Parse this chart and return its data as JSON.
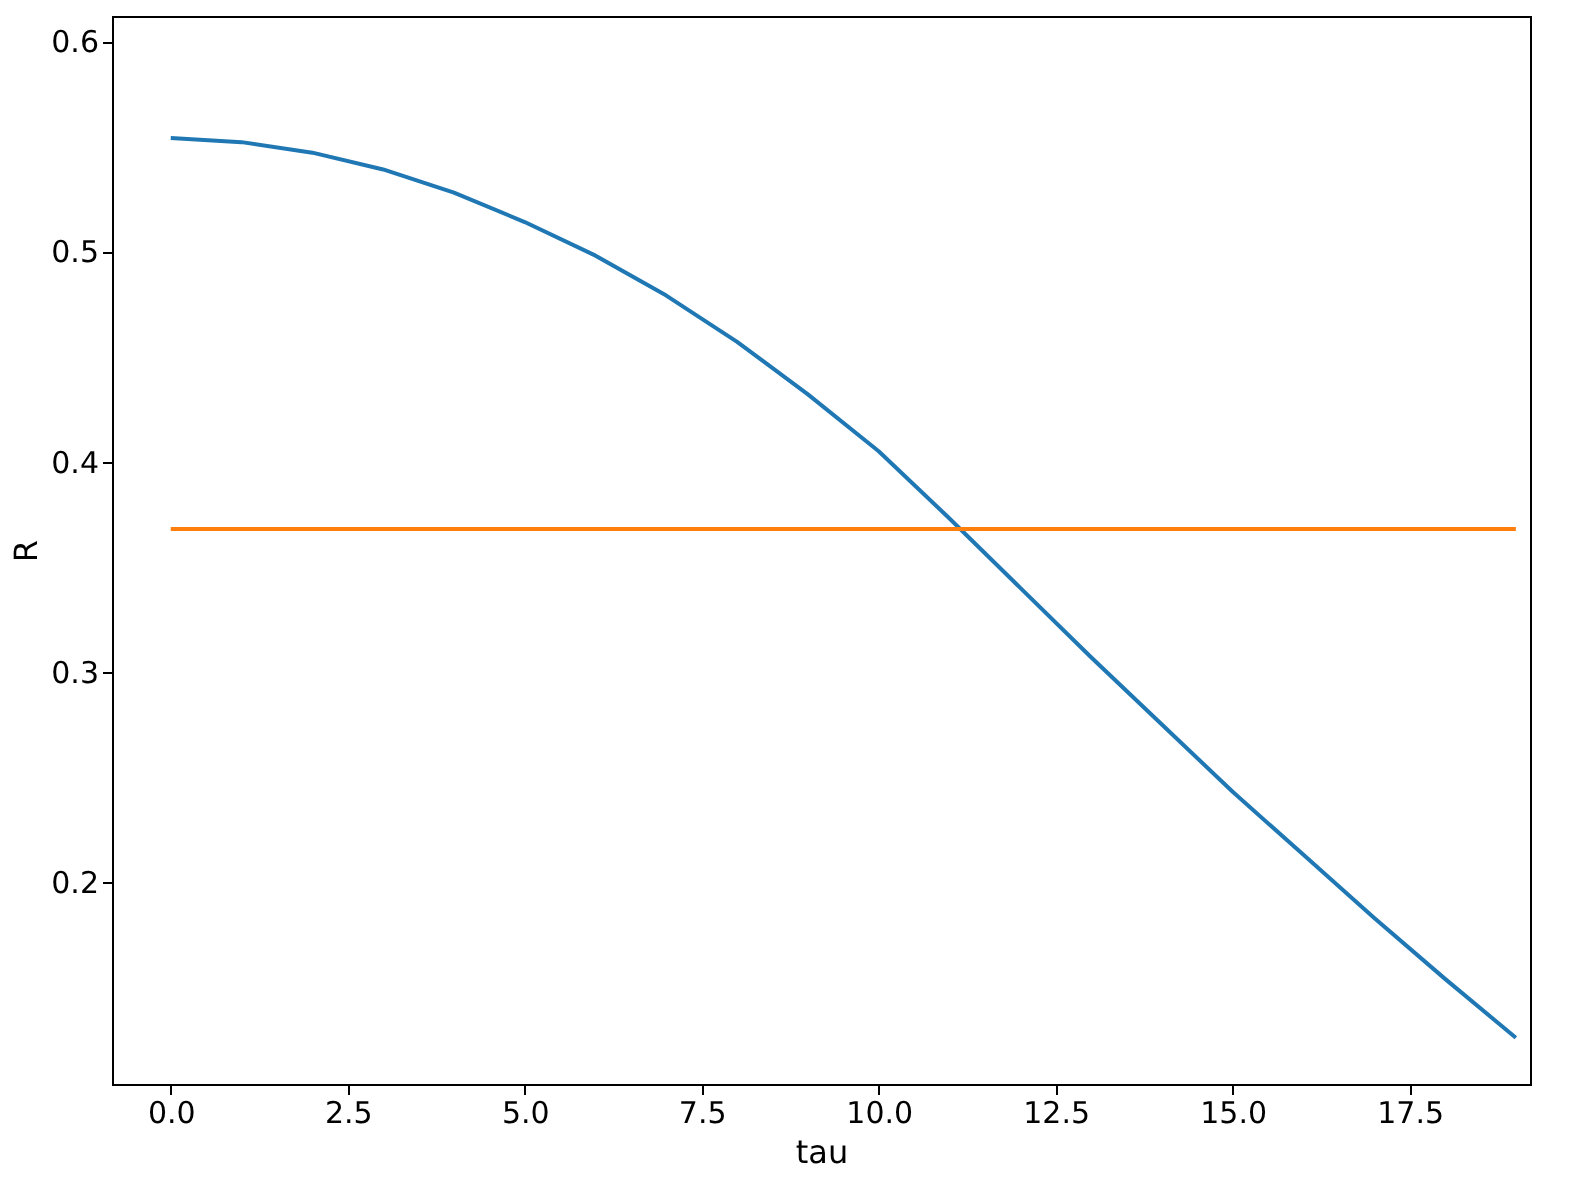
{
  "chart_data": {
    "type": "line",
    "xlabel": "tau",
    "ylabel": "R",
    "x": [
      0,
      1,
      2,
      3,
      4,
      5,
      6,
      7,
      8,
      9,
      10,
      11,
      12,
      13,
      14,
      15,
      16,
      17,
      18,
      19
    ],
    "series": [
      {
        "color": "#1f77b4",
        "values": [
          0.554,
          0.552,
          0.547,
          0.539,
          0.528,
          0.514,
          0.498,
          0.479,
          0.457,
          0.432,
          0.405,
          0.373,
          0.34,
          0.307,
          0.275,
          0.243,
          0.213,
          0.183,
          0.154,
          0.126
        ]
      },
      {
        "color": "#ff7f0e",
        "values": [
          0.368,
          0.368,
          0.368,
          0.368,
          0.368,
          0.368,
          0.368,
          0.368,
          0.368,
          0.368,
          0.368,
          0.368,
          0.368,
          0.368,
          0.368,
          0.368,
          0.368,
          0.368,
          0.368,
          0.368
        ]
      }
    ],
    "xlim": [
      -0.83,
      19.2
    ],
    "ylim": [
      0.104,
      0.612
    ],
    "xticks": [
      {
        "value": 0,
        "label": "0.0"
      },
      {
        "value": 2.5,
        "label": "2.5"
      },
      {
        "value": 5,
        "label": "5.0"
      },
      {
        "value": 7.5,
        "label": "7.5"
      },
      {
        "value": 10,
        "label": "10.0"
      },
      {
        "value": 12.5,
        "label": "12.5"
      },
      {
        "value": 15,
        "label": "15.0"
      },
      {
        "value": 17.5,
        "label": "17.5"
      }
    ],
    "yticks": [
      0.2,
      0.3,
      0.4,
      0.5,
      0.6
    ],
    "grid": false,
    "marker": "none",
    "line_style": "solid"
  }
}
